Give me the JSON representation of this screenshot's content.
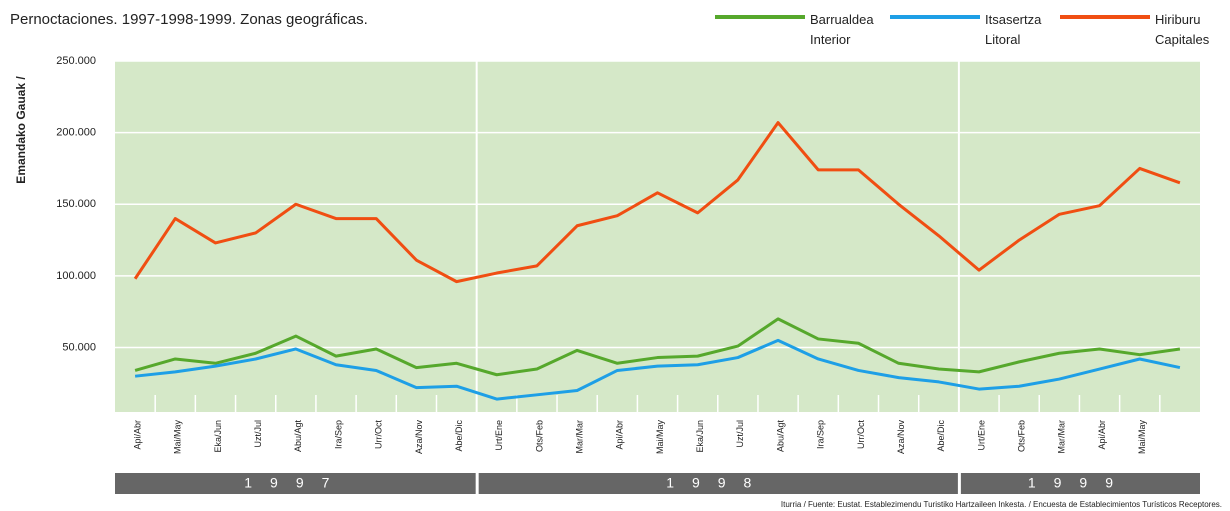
{
  "chart_data": {
    "type": "line",
    "title": "Pernoctaciones. 1997-1998-1999. Zonas geográficas.",
    "y_label": "Emandako Gauak /",
    "source": "Iturria / Fuente: Eustat. Establezimendu Turistiko Hartzaileen Inkesta. / Encuesta de Establecimientos Turísticos Receptores.",
    "groups": [
      {
        "label": "1997",
        "categories": [
          "Api/Abr",
          "Mai/May",
          "Eka/Jun",
          "Uzt/Jul",
          "Abu/Agt",
          "Ira/Sep",
          "Urr/Oct",
          "Aza/Nov",
          "Abe/Dic"
        ]
      },
      {
        "label": "1998",
        "categories": [
          "Urt/Ene",
          "Ots/Feb",
          "Mar/Mar",
          "Api/Abr",
          "Mai/May",
          "Eka/Jun",
          "Uzt/Jul",
          "Abu/Agt",
          "Ira/Sep",
          "Urr/Oct",
          "Aza/Nov",
          "Abe/Dic"
        ]
      },
      {
        "label": "1999",
        "categories": [
          "Urt/Ene",
          "Ots/Feb",
          "Mar/Mar",
          "Api/Abr",
          "Mai/May",
          null
        ]
      }
    ],
    "series": [
      {
        "name": "Barrualdea\nInterior",
        "color": "#56a82c",
        "values": [
          34000,
          42000,
          39000,
          46000,
          58000,
          44000,
          49000,
          36000,
          39000,
          31000,
          35000,
          48000,
          39000,
          43000,
          44000,
          51000,
          70000,
          56000,
          53000,
          39000,
          35000,
          33000,
          40000,
          46000,
          49000,
          45000,
          49000
        ]
      },
      {
        "name": "Itsasertza\nLitoral",
        "color": "#1e9fe6",
        "values": [
          30000,
          33000,
          37000,
          42000,
          49000,
          38000,
          34000,
          22000,
          23000,
          14000,
          17000,
          20000,
          34000,
          37000,
          38000,
          43000,
          55000,
          42000,
          34000,
          29000,
          26000,
          21000,
          23000,
          28000,
          35000,
          42000,
          36000
        ]
      },
      {
        "name": "Hiriburu\nCapitales",
        "color": "#f04e12",
        "values": [
          98000,
          140000,
          123000,
          130000,
          150000,
          140000,
          140000,
          111000,
          96000,
          102000,
          107000,
          135000,
          142000,
          158000,
          144000,
          167000,
          207000,
          174000,
          174000,
          150000,
          128000,
          104000,
          125000,
          143000,
          149000,
          175000,
          165000
        ]
      }
    ],
    "ylim": [
      5000,
      250000
    ],
    "yticks": [
      {
        "value": 50000,
        "label": "50.000"
      },
      {
        "value": 100000,
        "label": "100.000"
      },
      {
        "value": 150000,
        "label": "150.000"
      },
      {
        "value": 200000,
        "label": "200.000"
      },
      {
        "value": 250000,
        "label": "250.000"
      }
    ],
    "grid": true,
    "background": "#d5e8c8"
  }
}
